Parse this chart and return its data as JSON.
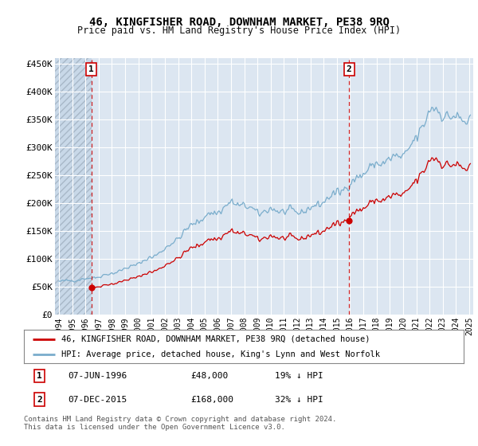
{
  "title": "46, KINGFISHER ROAD, DOWNHAM MARKET, PE38 9RQ",
  "subtitle": "Price paid vs. HM Land Registry's House Price Index (HPI)",
  "background_color": "#ffffff",
  "plot_bg_color": "#dce6f1",
  "grid_color": "#ffffff",
  "sale1_date": 1996.44,
  "sale1_price": 48000,
  "sale2_date": 2015.92,
  "sale2_price": 168000,
  "ylim": [
    0,
    460000
  ],
  "xlim": [
    1993.7,
    2025.3
  ],
  "yticks": [
    0,
    50000,
    100000,
    150000,
    200000,
    250000,
    300000,
    350000,
    400000,
    450000
  ],
  "ytick_labels": [
    "£0",
    "£50K",
    "£100K",
    "£150K",
    "£200K",
    "£250K",
    "£300K",
    "£350K",
    "£400K",
    "£450K"
  ],
  "xticks": [
    1994,
    1995,
    1996,
    1997,
    1998,
    1999,
    2000,
    2001,
    2002,
    2003,
    2004,
    2005,
    2006,
    2007,
    2008,
    2009,
    2010,
    2011,
    2012,
    2013,
    2014,
    2015,
    2016,
    2017,
    2018,
    2019,
    2020,
    2021,
    2022,
    2023,
    2024,
    2025
  ],
  "price_paid_color": "#cc0000",
  "hpi_color": "#7aadcc",
  "annotation_box_color": "#cc0000",
  "footer_text": "Contains HM Land Registry data © Crown copyright and database right 2024.\nThis data is licensed under the Open Government Licence v3.0.",
  "legend_label1": "46, KINGFISHER ROAD, DOWNHAM MARKET, PE38 9RQ (detached house)",
  "legend_label2": "HPI: Average price, detached house, King's Lynn and West Norfolk"
}
